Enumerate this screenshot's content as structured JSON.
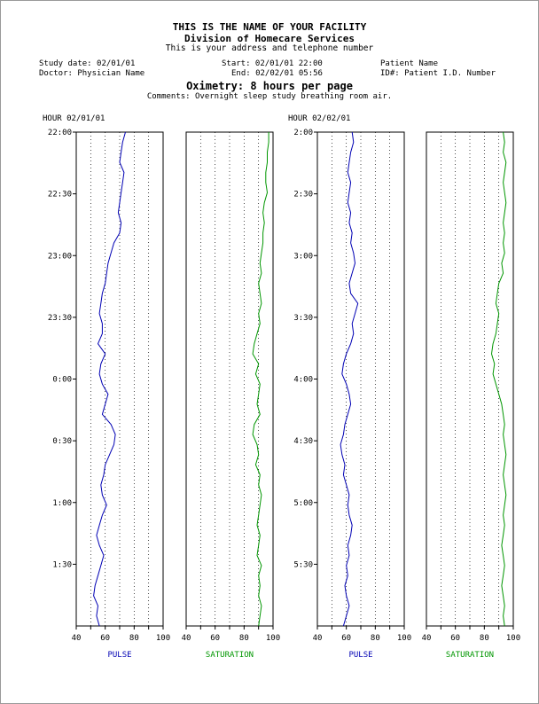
{
  "header": {
    "facility": "THIS IS THE NAME OF YOUR FACILITY",
    "division": "Division of Homecare Services",
    "address": "This is your address and telephone number"
  },
  "info": {
    "study_date": "Study date: 02/01/01",
    "doctor": "Doctor: Physician Name",
    "start": "Start: 02/01/01 22:00",
    "end": "End: 02/02/01 05:56",
    "patient_name": "Patient Name",
    "patient_id": "ID#: Patient I.D. Number"
  },
  "report_title": "Oximetry: 8 hours per page",
  "comments": "Comments: Overnight sleep study breathing room air.",
  "hour_labels": [
    "HOUR  02/01/01",
    "HOUR  02/02/01"
  ],
  "colors": {
    "pulse": "#0000b4",
    "saturation": "#009600"
  },
  "chart_data": [
    {
      "type": "line",
      "orientation": "vertical-time",
      "name": "PULSE",
      "xlabel": "PULSE",
      "xlim": [
        40,
        100
      ],
      "xticks": [
        40,
        60,
        80,
        100
      ],
      "xticks_minor": [
        50,
        70,
        90
      ],
      "time_ticks": [
        "22:00",
        "22:30",
        "23:00",
        "23:30",
        "0:00",
        "0:30",
        "1:00",
        "1:30"
      ],
      "time_start": "22:00",
      "time_end": "02:00",
      "values": [
        74,
        72,
        71,
        70,
        73,
        72,
        71,
        70,
        69,
        71,
        70,
        66,
        64,
        62,
        61,
        60,
        58,
        57,
        56,
        58,
        58,
        55,
        60,
        57,
        56,
        58,
        62,
        60,
        58,
        64,
        67,
        66,
        63,
        60,
        59,
        57,
        58,
        61,
        58,
        56,
        54,
        56,
        59,
        57,
        55,
        53,
        52,
        55,
        54,
        56
      ]
    },
    {
      "type": "line",
      "orientation": "vertical-time",
      "name": "SATURATION",
      "xlabel": "SATURATION",
      "xlim": [
        40,
        100
      ],
      "xticks": [
        40,
        60,
        80,
        100
      ],
      "xticks_minor": [
        50,
        70,
        90
      ],
      "time_start": "22:00",
      "time_end": "02:00",
      "values": [
        97,
        97,
        96,
        96,
        95,
        95,
        96,
        94,
        93,
        94,
        93,
        93,
        92,
        91,
        92,
        90,
        91,
        92,
        90,
        91,
        89,
        87,
        86,
        90,
        88,
        91,
        90,
        89,
        91,
        87,
        86,
        89,
        90,
        88,
        91,
        90,
        92,
        91,
        90,
        89,
        91,
        90,
        89,
        92,
        90,
        91,
        90,
        92,
        91,
        90
      ]
    },
    {
      "type": "line",
      "orientation": "vertical-time",
      "name": "PULSE",
      "xlabel": "PULSE",
      "xlim": [
        40,
        100
      ],
      "xticks": [
        40,
        60,
        80,
        100
      ],
      "xticks_minor": [
        50,
        70,
        90
      ],
      "time_ticks": [
        "2:00",
        "2:30",
        "3:00",
        "3:30",
        "4:00",
        "4:30",
        "5:00",
        "5:30"
      ],
      "time_start": "02:00",
      "time_end": "05:56",
      "values": [
        64,
        65,
        63,
        62,
        61,
        63,
        62,
        61,
        63,
        62,
        64,
        63,
        65,
        66,
        64,
        62,
        63,
        68,
        66,
        64,
        65,
        63,
        60,
        58,
        57,
        60,
        62,
        63,
        61,
        59,
        58,
        56,
        57,
        59,
        58,
        60,
        62,
        61,
        62,
        64,
        63,
        61,
        62,
        60,
        61,
        59,
        60,
        62,
        60,
        58
      ]
    },
    {
      "type": "line",
      "orientation": "vertical-time",
      "name": "SATURATION",
      "xlabel": "SATURATION",
      "xlim": [
        40,
        100
      ],
      "xticks": [
        40,
        60,
        80,
        100
      ],
      "xticks_minor": [
        50,
        70,
        90
      ],
      "time_start": "02:00",
      "time_end": "05:56",
      "values": [
        93,
        94,
        93,
        95,
        94,
        93,
        94,
        95,
        94,
        93,
        94,
        93,
        94,
        92,
        93,
        90,
        89,
        88,
        90,
        89,
        88,
        86,
        85,
        87,
        86,
        88,
        90,
        92,
        93,
        94,
        93,
        94,
        95,
        94,
        93,
        94,
        95,
        94,
        93,
        94,
        93,
        92,
        93,
        94,
        93,
        92,
        93,
        94,
        93,
        94
      ]
    }
  ]
}
